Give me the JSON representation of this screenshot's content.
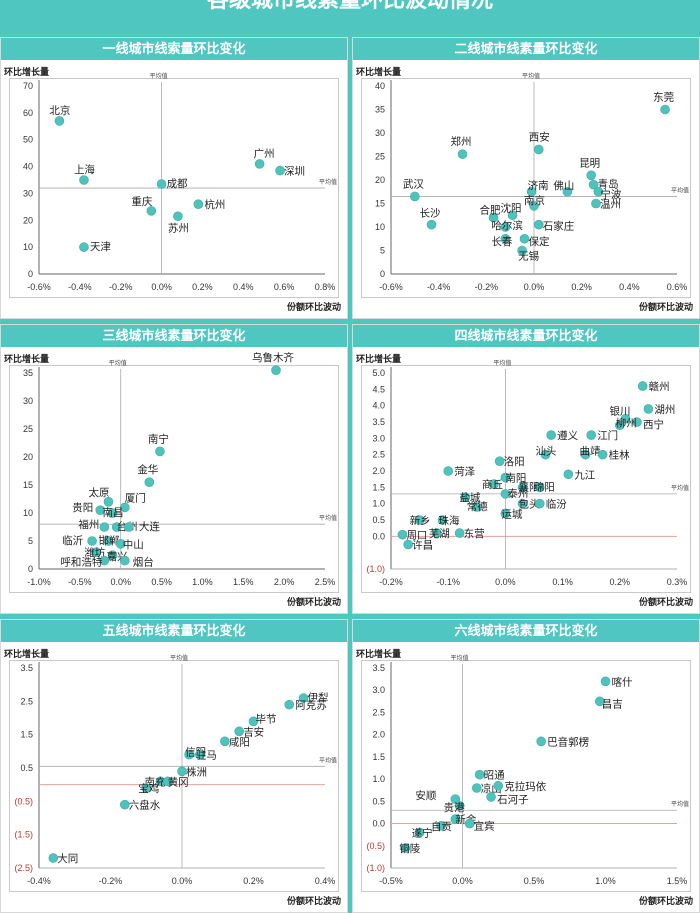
{
  "page_title": "各级城市线素量环比波动情况",
  "colors": {
    "accent": "#4fc6c0",
    "marker": "#4ec2bb",
    "negative": "#c0392b",
    "refline": "#e8a0a0"
  },
  "chart_data": [
    {
      "type": "scatter",
      "title": "一线城市线索量环比变化",
      "ylabel": "环比增长量",
      "xlabel": "份额环比波动",
      "xticks": [
        "-0.6%",
        "-0.4%",
        "-0.2%",
        "0.0%",
        "0.2%",
        "0.4%",
        "0.6%",
        "0.8%"
      ],
      "yticks": [
        "0",
        "10",
        "20",
        "30",
        "40",
        "50",
        "60",
        "70"
      ],
      "xlim": [
        -0.6,
        0.8
      ],
      "ylim": [
        0,
        70
      ],
      "avg_x": 0.0,
      "avg_y": 32,
      "avg_x_label": "平均值",
      "avg_y_label": "平均值",
      "points": [
        {
          "name": "北京",
          "x": -0.5,
          "y": 57,
          "lx": -10,
          "ly": -7
        },
        {
          "name": "上海",
          "x": -0.38,
          "y": 35,
          "lx": -10,
          "ly": -7
        },
        {
          "name": "天津",
          "x": -0.38,
          "y": 10,
          "lx": 6,
          "ly": 3
        },
        {
          "name": "成都",
          "x": 0.0,
          "y": 33.5,
          "lx": 5,
          "ly": 3
        },
        {
          "name": "重庆",
          "x": -0.05,
          "y": 23.5,
          "lx": -20,
          "ly": -6
        },
        {
          "name": "苏州",
          "x": 0.08,
          "y": 21.5,
          "lx": -10,
          "ly": 15
        },
        {
          "name": "杭州",
          "x": 0.18,
          "y": 26,
          "lx": 6,
          "ly": 4
        },
        {
          "name": "广州",
          "x": 0.48,
          "y": 41,
          "lx": -6,
          "ly": -7
        },
        {
          "name": "深圳",
          "x": 0.58,
          "y": 38.5,
          "lx": 4,
          "ly": 4
        }
      ]
    },
    {
      "type": "scatter",
      "title": "二线城市线素量环比变化",
      "ylabel": "环比增长量",
      "xlabel": "份额环比波动",
      "xticks": [
        "-0.6%",
        "-0.4%",
        "-0.2%",
        "0.0%",
        "0.2%",
        "0.4%",
        "0.6%"
      ],
      "yticks": [
        "0",
        "5",
        "10",
        "15",
        "20",
        "25",
        "30",
        "35",
        "40"
      ],
      "xlim": [
        -0.6,
        0.6
      ],
      "ylim": [
        0,
        40
      ],
      "avg_x": 0.0,
      "avg_y": 16.5,
      "avg_x_label": "平均值",
      "avg_y_label": "平均值",
      "points": [
        {
          "name": "东莞",
          "x": 0.55,
          "y": 35,
          "lx": -12,
          "ly": -9
        },
        {
          "name": "郑州",
          "x": -0.3,
          "y": 25.5,
          "lx": -12,
          "ly": -9
        },
        {
          "name": "西安",
          "x": 0.02,
          "y": 26.5,
          "lx": -10,
          "ly": -9
        },
        {
          "name": "武汉",
          "x": -0.5,
          "y": 16.5,
          "lx": -12,
          "ly": -9
        },
        {
          "name": "长沙",
          "x": -0.43,
          "y": 10.5,
          "lx": -12,
          "ly": -8
        },
        {
          "name": "昆明",
          "x": 0.24,
          "y": 21,
          "lx": -12,
          "ly": -9
        },
        {
          "name": "青岛",
          "x": 0.25,
          "y": 19,
          "lx": 4,
          "ly": 3
        },
        {
          "name": "宁波",
          "x": 0.27,
          "y": 17.5,
          "lx": 2,
          "ly": 6
        },
        {
          "name": "温州",
          "x": 0.26,
          "y": 15,
          "lx": 4,
          "ly": 4
        },
        {
          "name": "济南",
          "x": -0.01,
          "y": 17.5,
          "lx": -4,
          "ly": -3
        },
        {
          "name": "佛山",
          "x": 0.14,
          "y": 17.5,
          "lx": -14,
          "ly": -3
        },
        {
          "name": "合肥",
          "x": -0.17,
          "y": 12,
          "lx": -14,
          "ly": -4
        },
        {
          "name": "沈阳",
          "x": -0.09,
          "y": 12.5,
          "lx": -12,
          "ly": -4
        },
        {
          "name": "南京",
          "x": 0.0,
          "y": 14.5,
          "lx": -10,
          "ly": -2
        },
        {
          "name": "哈尔滨",
          "x": -0.12,
          "y": 10,
          "lx": -14,
          "ly": 2
        },
        {
          "name": "石家庄",
          "x": 0.02,
          "y": 10.5,
          "lx": 4,
          "ly": 5
        },
        {
          "name": "长春",
          "x": -0.12,
          "y": 7.5,
          "lx": -14,
          "ly": 6
        },
        {
          "name": "保定",
          "x": -0.04,
          "y": 7.5,
          "lx": 4,
          "ly": 6
        },
        {
          "name": "无锡",
          "x": -0.05,
          "y": 5,
          "lx": -4,
          "ly": 9
        }
      ]
    },
    {
      "type": "scatter",
      "title": "三线城市线素量环比变化",
      "ylabel": "环比增长量",
      "xlabel": "份额环比波动",
      "xticks": [
        "-1.0%",
        "-0.5%",
        "0.0%",
        "0.5%",
        "1.0%",
        "1.5%",
        "2.0%",
        "2.5%"
      ],
      "yticks": [
        "0",
        "5",
        "10",
        "15",
        "20",
        "25",
        "30",
        "35"
      ],
      "xlim": [
        -1.0,
        2.5
      ],
      "ylim": [
        0,
        35
      ],
      "avg_x": 0.0,
      "avg_y": 8,
      "avg_x_label": "平均值",
      "avg_y_label": "平均值",
      "points": [
        {
          "name": "乌鲁木齐",
          "x": 1.9,
          "y": 35.5,
          "lx": -24,
          "ly": -9
        },
        {
          "name": "南宁",
          "x": 0.48,
          "y": 21,
          "lx": -12,
          "ly": -9
        },
        {
          "name": "金华",
          "x": 0.35,
          "y": 15.5,
          "lx": -12,
          "ly": -9
        },
        {
          "name": "太原",
          "x": -0.15,
          "y": 12,
          "lx": -20,
          "ly": -6
        },
        {
          "name": "厦门",
          "x": 0.05,
          "y": 11,
          "lx": 0,
          "ly": -6
        },
        {
          "name": "贵阳",
          "x": -0.25,
          "y": 10.5,
          "lx": -28,
          "ly": 1
        },
        {
          "name": "南昌",
          "x": -0.1,
          "y": 10,
          "lx": -10,
          "ly": 3
        },
        {
          "name": "福州",
          "x": -0.2,
          "y": 7.5,
          "lx": -26,
          "ly": 1
        },
        {
          "name": "台州",
          "x": -0.05,
          "y": 7.5,
          "lx": 0,
          "ly": 3
        },
        {
          "name": "大连",
          "x": 0.1,
          "y": 7.5,
          "lx": 10,
          "ly": 3
        },
        {
          "name": "临沂",
          "x": -0.35,
          "y": 5,
          "lx": -30,
          "ly": 3
        },
        {
          "name": "邯郸",
          "x": -0.15,
          "y": 5,
          "lx": -10,
          "ly": 3
        },
        {
          "name": "中山",
          "x": 0.0,
          "y": 4.5,
          "lx": 2,
          "ly": 4
        },
        {
          "name": "潍坊",
          "x": -0.3,
          "y": 3,
          "lx": -12,
          "ly": 4
        },
        {
          "name": "嘉兴",
          "x": -0.1,
          "y": 2.5,
          "lx": -6,
          "ly": 5
        },
        {
          "name": "呼和浩特",
          "x": -0.2,
          "y": 1.5,
          "lx": -44,
          "ly": 5
        },
        {
          "name": "烟台",
          "x": 0.05,
          "y": 1.5,
          "lx": 8,
          "ly": 5
        }
      ]
    },
    {
      "type": "scatter",
      "title": "四线城市线素量环比变化",
      "ylabel": "环比增长量",
      "xlabel": "份额环比波动",
      "xticks": [
        "-0.2%",
        "-0.1%",
        "0.0%",
        "0.1%",
        "0.2%",
        "0.3%"
      ],
      "yticks": [
        "(1.0)",
        "0.0",
        "0.5",
        "1.0",
        "1.5",
        "2.0",
        "2.5",
        "3.0",
        "3.5",
        "4.0",
        "4.5",
        "5.0"
      ],
      "xlim": [
        -0.2,
        0.3
      ],
      "ylim": [
        -1.0,
        5.0
      ],
      "avg_x": 0.0,
      "avg_y": 1.3,
      "avg_x_label": "平均值",
      "avg_y_label": "平均值",
      "points": [
        {
          "name": "赣州",
          "x": 0.24,
          "y": 4.6,
          "lx": 6,
          "ly": 4
        },
        {
          "name": "湖州",
          "x": 0.25,
          "y": 3.9,
          "lx": 6,
          "ly": 4
        },
        {
          "name": "银川",
          "x": 0.21,
          "y": 3.6,
          "lx": -16,
          "ly": -4
        },
        {
          "name": "西宁",
          "x": 0.23,
          "y": 3.5,
          "lx": 6,
          "ly": 6
        },
        {
          "name": "柳州",
          "x": 0.2,
          "y": 3.4,
          "lx": -4,
          "ly": 1
        },
        {
          "name": "遵义",
          "x": 0.08,
          "y": 3.1,
          "lx": 6,
          "ly": 4
        },
        {
          "name": "江门",
          "x": 0.15,
          "y": 3.1,
          "lx": 6,
          "ly": 4
        },
        {
          "name": "汕头",
          "x": 0.07,
          "y": 2.5,
          "lx": -10,
          "ly": 0
        },
        {
          "name": "曲靖",
          "x": 0.14,
          "y": 2.5,
          "lx": -6,
          "ly": 0
        },
        {
          "name": "桂林",
          "x": 0.17,
          "y": 2.5,
          "lx": 6,
          "ly": 4
        },
        {
          "name": "洛阳",
          "x": -0.01,
          "y": 2.3,
          "lx": 4,
          "ly": 4
        },
        {
          "name": "菏泽",
          "x": -0.1,
          "y": 2.0,
          "lx": 6,
          "ly": 4
        },
        {
          "name": "南阳",
          "x": 0.0,
          "y": 1.8,
          "lx": 0,
          "ly": 4
        },
        {
          "name": "九江",
          "x": 0.11,
          "y": 1.9,
          "lx": 6,
          "ly": 4
        },
        {
          "name": "商丘",
          "x": -0.02,
          "y": 1.6,
          "lx": -12,
          "ly": 4
        },
        {
          "name": "襄阳",
          "x": 0.03,
          "y": 1.5,
          "lx": -4,
          "ly": 3
        },
        {
          "name": "绵阳",
          "x": 0.06,
          "y": 1.5,
          "lx": -6,
          "ly": 3
        },
        {
          "name": "盐城",
          "x": -0.07,
          "y": 1.2,
          "lx": -6,
          "ly": 4
        },
        {
          "name": "泰州",
          "x": 0.0,
          "y": 1.3,
          "lx": 2,
          "ly": 3
        },
        {
          "name": "包头",
          "x": 0.03,
          "y": 1.0,
          "lx": -4,
          "ly": 4
        },
        {
          "name": "临汾",
          "x": 0.06,
          "y": 1.0,
          "lx": 6,
          "ly": 4
        },
        {
          "name": "常德",
          "x": -0.05,
          "y": 0.9,
          "lx": -10,
          "ly": 3
        },
        {
          "name": "运城",
          "x": 0.0,
          "y": 0.7,
          "lx": -4,
          "ly": 4
        },
        {
          "name": "新乡",
          "x": -0.15,
          "y": 0.5,
          "lx": -10,
          "ly": 4
        },
        {
          "name": "珠海",
          "x": -0.11,
          "y": 0.5,
          "lx": -4,
          "ly": 4
        },
        {
          "name": "芜湖",
          "x": -0.12,
          "y": 0.1,
          "lx": -8,
          "ly": 4
        },
        {
          "name": "东营",
          "x": -0.08,
          "y": 0.1,
          "lx": 4,
          "ly": 4
        },
        {
          "name": "周口",
          "x": -0.18,
          "y": 0.05,
          "lx": 4,
          "ly": 4
        },
        {
          "name": "许昌",
          "x": -0.17,
          "y": -0.25,
          "lx": 4,
          "ly": 4
        }
      ]
    },
    {
      "type": "scatter",
      "title": "五线城市线素量环比变化",
      "ylabel": "环比增长量",
      "xlabel": "份额环比波动",
      "xticks": [
        "-0.4%",
        "-0.2%",
        "0.0%",
        "0.2%",
        "0.4%"
      ],
      "yticks": [
        "(2.5)",
        "(1.5)",
        "(0.5)",
        "0.5",
        "1.5",
        "2.5",
        "3.5"
      ],
      "xlim": [
        -0.4,
        0.4
      ],
      "ylim": [
        -2.5,
        3.5
      ],
      "avg_x": 0.0,
      "avg_y": 0.55,
      "avg_x_label": "平均值",
      "avg_y_label": "平均值",
      "points": [
        {
          "name": "伊犁",
          "x": 0.34,
          "y": 2.6,
          "lx": 4,
          "ly": 3
        },
        {
          "name": "阿克苏",
          "x": 0.3,
          "y": 2.4,
          "lx": 6,
          "ly": 4
        },
        {
          "name": "毕节",
          "x": 0.2,
          "y": 1.9,
          "lx": 2,
          "ly": 1
        },
        {
          "name": "吉安",
          "x": 0.16,
          "y": 1.6,
          "lx": 4,
          "ly": 4
        },
        {
          "name": "咸阳",
          "x": 0.12,
          "y": 1.3,
          "lx": 4,
          "ly": 4
        },
        {
          "name": "信阳",
          "x": 0.02,
          "y": 0.9,
          "lx": -4,
          "ly": 1
        },
        {
          "name": "驻马",
          "x": 0.05,
          "y": 0.9,
          "lx": -4,
          "ly": 4
        },
        {
          "name": "株洲",
          "x": 0.0,
          "y": 0.4,
          "lx": 4,
          "ly": 4
        },
        {
          "name": "南充",
          "x": -0.06,
          "y": 0.1,
          "lx": -16,
          "ly": 4
        },
        {
          "name": "黄冈",
          "x": -0.04,
          "y": 0.1,
          "lx": 0,
          "ly": 4
        },
        {
          "name": "宝鸡",
          "x": -0.1,
          "y": -0.1,
          "lx": -8,
          "ly": 4
        },
        {
          "name": "六盘水",
          "x": -0.16,
          "y": -0.6,
          "lx": 4,
          "ly": 4
        },
        {
          "name": "大同",
          "x": -0.36,
          "y": -2.2,
          "lx": 4,
          "ly": 4
        }
      ]
    },
    {
      "type": "scatter",
      "title": "六线城市线素量环比变化",
      "ylabel": "环比增长量",
      "xlabel": "份额环比波动",
      "xticks": [
        "-0.5%",
        "0.0%",
        "0.5%",
        "1.0%",
        "1.5%"
      ],
      "yticks": [
        "(1.0)",
        "(0.5)",
        "0.0",
        "0.5",
        "1.0",
        "1.5",
        "2.0",
        "2.5",
        "3.0",
        "3.5"
      ],
      "xlim": [
        -0.5,
        1.5
      ],
      "ylim": [
        -1.0,
        3.5
      ],
      "avg_x": 0.0,
      "avg_y": 0.3,
      "avg_x_label": "平均值",
      "avg_y_label": "平均值",
      "points": [
        {
          "name": "喀什",
          "x": 1.0,
          "y": 3.2,
          "lx": 6,
          "ly": 4
        },
        {
          "name": "昌吉",
          "x": 0.96,
          "y": 2.75,
          "lx": 2,
          "ly": 6
        },
        {
          "name": "巴音郭楞",
          "x": 0.55,
          "y": 1.85,
          "lx": 6,
          "ly": 4
        },
        {
          "name": "昭通",
          "x": 0.12,
          "y": 1.1,
          "lx": 4,
          "ly": 4
        },
        {
          "name": "凉山",
          "x": 0.1,
          "y": 0.8,
          "lx": 4,
          "ly": 4
        },
        {
          "name": "克拉玛依",
          "x": 0.25,
          "y": 0.85,
          "lx": 6,
          "ly": 4
        },
        {
          "name": "石河子",
          "x": 0.2,
          "y": 0.6,
          "lx": 6,
          "ly": 6
        },
        {
          "name": "安顺",
          "x": -0.05,
          "y": 0.55,
          "lx": -40,
          "ly": 0
        },
        {
          "name": "贵港",
          "x": -0.02,
          "y": 0.4,
          "lx": -16,
          "ly": 5
        },
        {
          "name": "新余",
          "x": -0.05,
          "y": 0.1,
          "lx": 0,
          "ly": 4
        },
        {
          "name": "宜宾",
          "x": 0.05,
          "y": 0.0,
          "lx": 4,
          "ly": 6
        },
        {
          "name": "自贡",
          "x": -0.15,
          "y": -0.05,
          "lx": -10,
          "ly": 4
        },
        {
          "name": "遂宁",
          "x": -0.3,
          "y": -0.2,
          "lx": -8,
          "ly": 4
        },
        {
          "name": "铜陵",
          "x": -0.4,
          "y": -0.55,
          "lx": -6,
          "ly": 4
        }
      ]
    }
  ]
}
